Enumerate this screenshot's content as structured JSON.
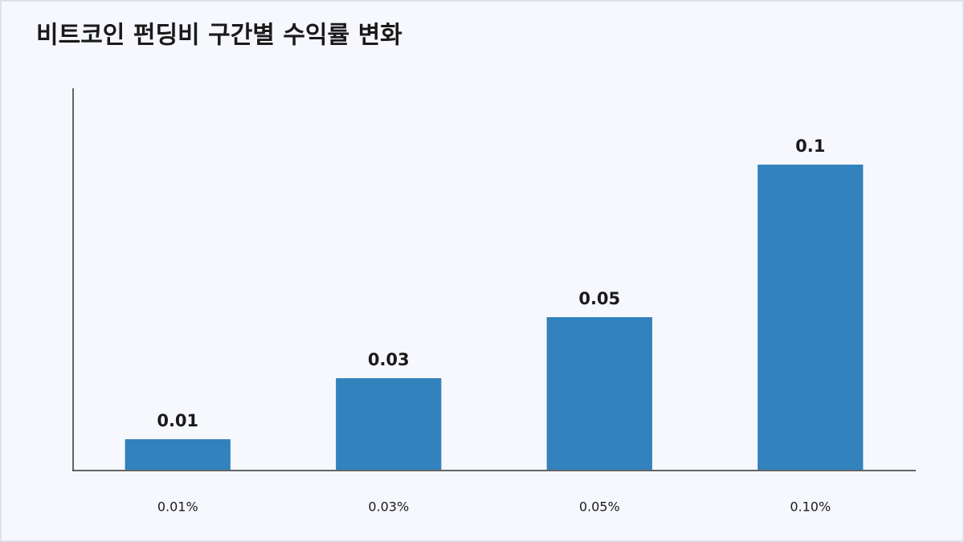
{
  "chart_data": {
    "type": "bar",
    "title": "비트코인 펀딩비 구간별 수익률 변화",
    "categories": [
      "0.01%",
      "0.03%",
      "0.05%",
      "0.10%"
    ],
    "values": [
      0.01,
      0.03,
      0.05,
      0.1
    ],
    "color": "#3182bd",
    "ylim": [
      0,
      0.125
    ]
  }
}
